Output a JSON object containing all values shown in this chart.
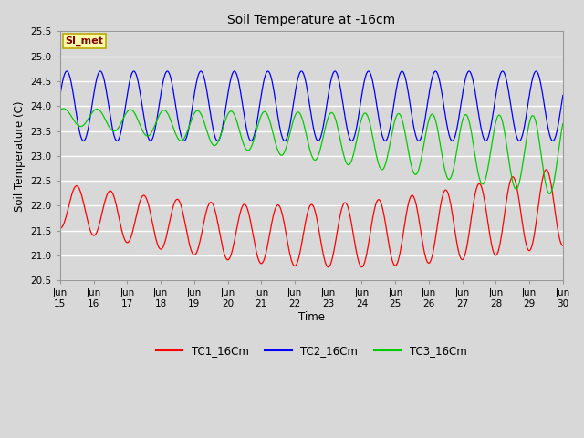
{
  "title": "Soil Temperature at -16cm",
  "ylabel": "Soil Temperature (C)",
  "xlabel": "Time",
  "ylim": [
    20.5,
    25.5
  ],
  "yticks": [
    20.5,
    21.0,
    21.5,
    22.0,
    22.5,
    23.0,
    23.5,
    24.0,
    24.5,
    25.0,
    25.5
  ],
  "xtick_labels": [
    "Jun\n15",
    "Jun\n16",
    "Jun\n17",
    "Jun\n18",
    "Jun\n19",
    "Jun\n20",
    "Jun\n21",
    "Jun\n22",
    "Jun\n23",
    "Jun\n24",
    "Jun\n25",
    "Jun\n26",
    "Jun\n27",
    "Jun\n28",
    "Jun\n29",
    "Jun\n30"
  ],
  "tc1_color": "#ff0000",
  "tc2_color": "#0000ff",
  "tc3_color": "#00cc00",
  "tc1_label": "TC1_16Cm",
  "tc2_label": "TC2_16Cm",
  "tc3_label": "TC3_16Cm",
  "annotation_text": "SI_met",
  "annotation_bg": "#ffffaa",
  "annotation_border": "#bbaa00",
  "annotation_fg": "#880000",
  "bg_color": "#d8d8d8",
  "plot_bg": "#d8d8d8",
  "period_hours": 24,
  "total_hours": 360
}
